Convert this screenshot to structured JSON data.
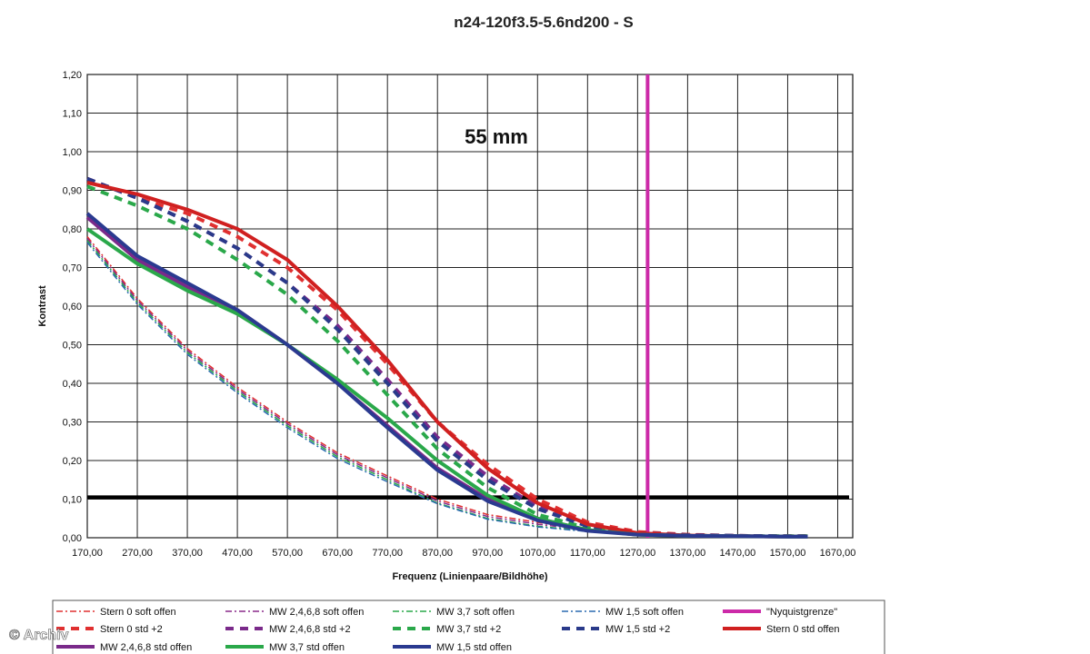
{
  "chart_data": {
    "type": "line",
    "title": "n24-120f3.5-5.6nd200 - S",
    "annotation": "55 mm",
    "xlabel": "Frequenz (Linienpaare/Bildhöhe)",
    "ylabel": "Kontrast",
    "xlim": [
      170,
      1700
    ],
    "ylim": [
      0,
      1.2
    ],
    "x_ticks": [
      "170,00",
      "270,00",
      "370,00",
      "470,00",
      "570,00",
      "670,00",
      "770,00",
      "870,00",
      "970,00",
      "1070,00",
      "1170,00",
      "1270,00",
      "1370,00",
      "1470,00",
      "1570,00",
      "1670,00"
    ],
    "y_ticks": [
      "0,00",
      "0,10",
      "0,20",
      "0,30",
      "0,40",
      "0,50",
      "0,60",
      "0,70",
      "0,80",
      "0,90",
      "1,00",
      "1,10",
      "1,20"
    ],
    "grid": true,
    "legend_position": "bottom",
    "x": [
      170,
      270,
      370,
      470,
      570,
      670,
      770,
      870,
      970,
      1070,
      1170,
      1270,
      1370,
      1470,
      1570,
      1610
    ],
    "series": [
      {
        "name": "Stern 0 soft offen",
        "color": "#e03030",
        "style": "dashdot",
        "width": 1.5,
        "values": [
          0.78,
          0.62,
          0.49,
          0.39,
          0.3,
          0.22,
          0.16,
          0.1,
          0.06,
          0.04,
          0.02,
          0.01,
          0.005,
          0.003,
          0.002,
          0.002
        ]
      },
      {
        "name": "MW 2,4,6,8 soft offen",
        "color": "#8a2a8a",
        "style": "dashdot",
        "width": 1.5,
        "values": [
          0.775,
          0.615,
          0.485,
          0.385,
          0.295,
          0.215,
          0.155,
          0.095,
          0.055,
          0.035,
          0.02,
          0.01,
          0.005,
          0.003,
          0.002,
          0.002
        ]
      },
      {
        "name": "MW 3,7 soft offen",
        "color": "#2aa84a",
        "style": "dashdot",
        "width": 1.5,
        "values": [
          0.77,
          0.61,
          0.48,
          0.38,
          0.29,
          0.21,
          0.15,
          0.09,
          0.05,
          0.03,
          0.018,
          0.01,
          0.005,
          0.003,
          0.002,
          0.002
        ]
      },
      {
        "name": "MW 1,5 soft offen",
        "color": "#2a6ab0",
        "style": "dashdot",
        "width": 1.5,
        "values": [
          0.765,
          0.605,
          0.475,
          0.375,
          0.285,
          0.205,
          0.145,
          0.088,
          0.048,
          0.028,
          0.016,
          0.009,
          0.005,
          0.003,
          0.002,
          0.002
        ]
      },
      {
        "name": "\"Nyquistgrenze\"",
        "color": "#cc2aa8",
        "style": "vline",
        "width": 4,
        "x_value": 1290
      },
      {
        "name": "Stern 0 std +2",
        "color": "#e03030",
        "style": "dashed",
        "width": 4,
        "values": [
          0.93,
          0.88,
          0.84,
          0.78,
          0.7,
          0.59,
          0.45,
          0.3,
          0.19,
          0.1,
          0.04,
          0.015,
          0.008,
          0.005,
          0.004,
          0.004
        ]
      },
      {
        "name": "MW 2,4,6,8 std +2",
        "color": "#7a2a8a",
        "style": "dashed",
        "width": 4,
        "values": [
          0.93,
          0.88,
          0.82,
          0.75,
          0.66,
          0.55,
          0.41,
          0.26,
          0.16,
          0.08,
          0.035,
          0.012,
          0.007,
          0.005,
          0.004,
          0.004
        ]
      },
      {
        "name": "MW 3,7 std +2",
        "color": "#2aa84a",
        "style": "dashed",
        "width": 4,
        "values": [
          0.91,
          0.86,
          0.8,
          0.72,
          0.63,
          0.51,
          0.37,
          0.23,
          0.13,
          0.06,
          0.025,
          0.01,
          0.006,
          0.004,
          0.004,
          0.004
        ]
      },
      {
        "name": "MW 1,5 std +2",
        "color": "#2a3a8a",
        "style": "dashed",
        "width": 4,
        "values": [
          0.93,
          0.88,
          0.82,
          0.75,
          0.66,
          0.54,
          0.4,
          0.25,
          0.15,
          0.075,
          0.03,
          0.012,
          0.007,
          0.005,
          0.004,
          0.004
        ]
      },
      {
        "name": "Stern 0 std offen",
        "color": "#d02020",
        "style": "solid",
        "width": 4,
        "values": [
          0.92,
          0.89,
          0.85,
          0.8,
          0.72,
          0.6,
          0.46,
          0.3,
          0.18,
          0.09,
          0.035,
          0.012,
          0.006,
          0.004,
          0.003,
          0.003
        ]
      }
    ],
    "series_extra": [
      {
        "name": "MW 2,4,6,8 std offen",
        "color": "#7a2a8a",
        "style": "solid",
        "width": 4,
        "values": [
          0.83,
          0.72,
          0.65,
          0.59,
          0.5,
          0.4,
          0.29,
          0.18,
          0.1,
          0.05,
          0.02,
          0.008,
          0.005,
          0.004,
          0.003,
          0.003
        ]
      },
      {
        "name": "MW 3,7 std offen",
        "color": "#2aa84a",
        "style": "solid",
        "width": 4,
        "values": [
          0.8,
          0.71,
          0.64,
          0.58,
          0.5,
          0.41,
          0.31,
          0.2,
          0.11,
          0.05,
          0.02,
          0.008,
          0.005,
          0.004,
          0.003,
          0.003
        ]
      },
      {
        "name": "MW 1,5 std offen",
        "color": "#2a3a90",
        "style": "solid",
        "width": 4,
        "values": [
          0.84,
          0.73,
          0.66,
          0.59,
          0.5,
          0.4,
          0.285,
          0.175,
          0.095,
          0.045,
          0.018,
          0.008,
          0.005,
          0.004,
          0.003,
          0.003
        ]
      }
    ],
    "hline": {
      "y_value": 0.105,
      "color": "#000000"
    }
  },
  "watermark": "© Archiv"
}
